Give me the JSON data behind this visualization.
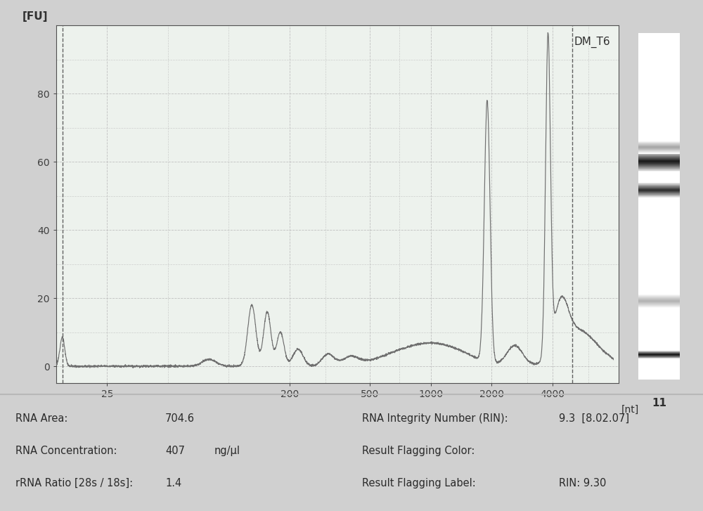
{
  "title": "DM_T6",
  "ylabel": "[FU]",
  "xlabel": "[nt]",
  "ylim": [
    -5,
    100
  ],
  "yticks": [
    0,
    20,
    40,
    60,
    80
  ],
  "xtick_labels": [
    "25",
    "200",
    "500",
    "1000",
    "2000",
    "4000"
  ],
  "xtick_nt": [
    25,
    200,
    500,
    1000,
    2000,
    4000
  ],
  "grid_color": "#c0c0c0",
  "line_color": "#707070",
  "plot_bg": "#edf2ed",
  "outer_bg": "#d0d0d0",
  "info_bg": "#e8e8e8",
  "vline_nt": [
    15,
    5000
  ],
  "info_text": [
    [
      "RNA Area:",
      "704.6",
      "",
      "RNA Integrity Number (RIN):",
      "9.3  [8.02.07]"
    ],
    [
      "RNA Concentration:",
      "407",
      "ng/μl",
      "Result Flagging Color:",
      ""
    ],
    [
      "rRNA Ratio [28s / 18s]:",
      "1.4",
      "",
      "Result Flagging Label:",
      "RIN: 9.30"
    ]
  ]
}
